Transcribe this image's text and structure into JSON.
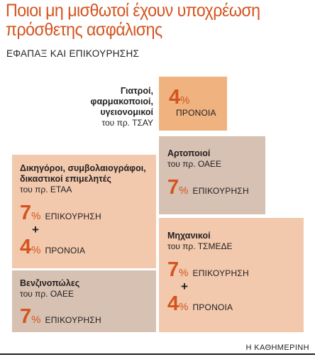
{
  "header": {
    "title_line1": "Ποιοι μη μισθωτοί έχουν υποχρέωση",
    "title_line2": "πρόσθετης ασφάλισης",
    "subtitle": "ΕΦΑΠΑΞ ΚΑΙ ΕΠΙΚΟΥΡΗΣΗΣ"
  },
  "groups": {
    "doctors": {
      "label_line1": "Γιατροί, φαρμακοποιοί,",
      "label_line2": "υγειονομικοί",
      "fund": "του πρ. ΤΣΑΥ",
      "rate_num": "4",
      "rate_pct": "%",
      "rate_kind": "ΠΡΟΝΟΙΑ"
    },
    "bakers": {
      "label": "Αρτοποιοί",
      "fund": "του πρ. ΟΑΕΕ",
      "rate_num": "7",
      "rate_pct": "%",
      "rate_kind": "ΕΠΙΚΟΥΡΗΣΗ"
    },
    "lawyers": {
      "label_line1": "Δικηγόροι, συμβολαιογράφοι,",
      "label_line2": "δικαστικοί επιμελητές",
      "fund": "του πρ. ΕΤΑΑ",
      "rate1_num": "7",
      "rate1_pct": "%",
      "rate1_kind": "ΕΠΙΚΟΥΡΗΣΗ",
      "plus": "+",
      "rate2_num": "4",
      "rate2_pct": "%",
      "rate2_kind": "ΠΡΟΝΟΙΑ"
    },
    "gas_station": {
      "label": "Βενζινοπώλες",
      "fund": "του πρ. ΟΑΕΕ",
      "rate_num": "7",
      "rate_pct": "%",
      "rate_kind": "ΕΠΙΚΟΥΡΗΣΗ"
    },
    "engineers": {
      "label": "Μηχανικοί",
      "fund": "του πρ. ΤΣΜΕΔΕ",
      "rate1_num": "7",
      "rate1_pct": "%",
      "rate1_kind": "ΕΠΙΚΟΥΡΗΣΗ",
      "plus": "+",
      "rate2_num": "4",
      "rate2_pct": "%",
      "rate2_kind": "ΠΡΟΝΟΙΑ"
    }
  },
  "footer": {
    "source": "Η ΚΑΘΗΜΕΡΙΝΗ"
  },
  "colors": {
    "accent": "#d4541e",
    "peach": "#f2c9ad",
    "beige": "#d7c1b3",
    "orange": "#f0b27f"
  }
}
